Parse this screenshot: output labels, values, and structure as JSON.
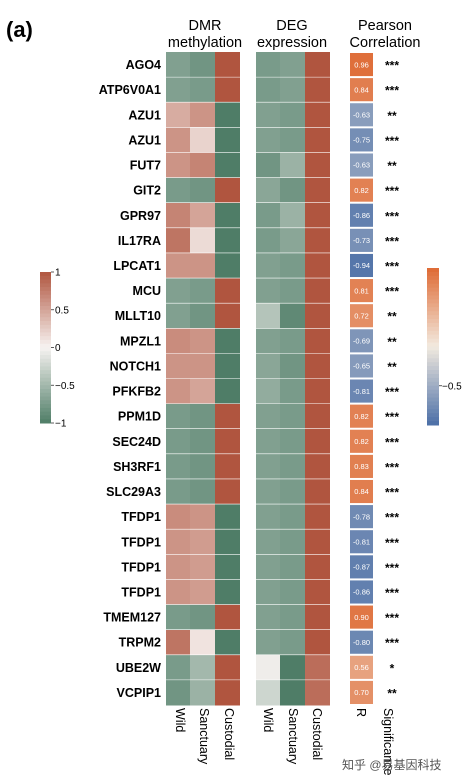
{
  "panel_label": "(a)",
  "headers": {
    "dmr": [
      "DMR",
      "methylation"
    ],
    "deg": [
      "DEG",
      "expression"
    ],
    "pearson": [
      "Pearson",
      "Correlation"
    ]
  },
  "x_labels": {
    "dmr": [
      "Wild",
      "Sanctuary",
      "Custodial"
    ],
    "deg": [
      "Wild",
      "Sanctuary",
      "Custodial"
    ],
    "r": "R",
    "sig": "Significance"
  },
  "colors": {
    "brown": "#b0553f",
    "white": "#f7f3f1",
    "green": "#4f7d67",
    "r_neg": "#4b6fa7",
    "r_mid": "#f2eadf",
    "r_pos": "#de6a34"
  },
  "chart_data": {
    "type": "heatmap",
    "genes": [
      "AGO4",
      "ATP6V0A1",
      "AZU1",
      "AZU1",
      "FUT7",
      "GIT2",
      "GPR97",
      "IL17RA",
      "LPCAT1",
      "MCU",
      "MLLT10",
      "MPZL1",
      "NOTCH1",
      "PFKFB2",
      "PPM1D",
      "SEC24D",
      "SH3RF1",
      "SLC29A3",
      "TFDP1",
      "TFDP1",
      "TFDP1",
      "TFDP1",
      "TMEM127",
      "TRPM2",
      "UBE2W",
      "VCPIP1"
    ],
    "columns": [
      "Wild",
      "Sanctuary",
      "Custodial"
    ],
    "dmr_methylation": [
      [
        -0.7,
        -0.8,
        1.0
      ],
      [
        -0.7,
        -0.75,
        1.0
      ],
      [
        0.45,
        0.6,
        -1.0
      ],
      [
        0.6,
        0.2,
        -1.0
      ],
      [
        0.6,
        0.7,
        -1.0
      ],
      [
        -0.75,
        -0.8,
        1.0
      ],
      [
        0.7,
        0.5,
        -1.0
      ],
      [
        0.8,
        0.15,
        -1.0
      ],
      [
        0.6,
        0.6,
        -1.0
      ],
      [
        -0.7,
        -0.75,
        1.0
      ],
      [
        -0.7,
        -0.8,
        1.0
      ],
      [
        0.65,
        0.6,
        -1.0
      ],
      [
        0.6,
        0.6,
        -1.0
      ],
      [
        0.6,
        0.5,
        -1.0
      ],
      [
        -0.75,
        -0.8,
        1.0
      ],
      [
        -0.75,
        -0.8,
        1.0
      ],
      [
        -0.75,
        -0.8,
        1.0
      ],
      [
        -0.75,
        -0.8,
        1.0
      ],
      [
        0.65,
        0.6,
        -1.0
      ],
      [
        0.6,
        0.55,
        -1.0
      ],
      [
        0.6,
        0.55,
        -1.0
      ],
      [
        0.6,
        0.55,
        -1.0
      ],
      [
        -0.75,
        -0.8,
        1.0
      ],
      [
        0.8,
        0.1,
        -1.0
      ],
      [
        -0.75,
        -0.5,
        1.0
      ],
      [
        -0.8,
        -0.55,
        1.0
      ]
    ],
    "deg_expression": [
      [
        -0.75,
        -0.7,
        1.0
      ],
      [
        -0.75,
        -0.7,
        1.0
      ],
      [
        -0.7,
        -0.75,
        1.0
      ],
      [
        -0.7,
        -0.75,
        1.0
      ],
      [
        -0.8,
        -0.55,
        1.0
      ],
      [
        -0.65,
        -0.8,
        1.0
      ],
      [
        -0.75,
        -0.55,
        1.0
      ],
      [
        -0.75,
        -0.65,
        1.0
      ],
      [
        -0.7,
        -0.75,
        1.0
      ],
      [
        -0.7,
        -0.75,
        1.0
      ],
      [
        -0.4,
        -0.9,
        1.0
      ],
      [
        -0.7,
        -0.75,
        1.0
      ],
      [
        -0.65,
        -0.8,
        1.0
      ],
      [
        -0.6,
        -0.75,
        1.0
      ],
      [
        -0.7,
        -0.75,
        1.0
      ],
      [
        -0.7,
        -0.75,
        1.0
      ],
      [
        -0.7,
        -0.75,
        1.0
      ],
      [
        -0.7,
        -0.75,
        1.0
      ],
      [
        -0.7,
        -0.75,
        1.0
      ],
      [
        -0.7,
        -0.75,
        1.0
      ],
      [
        -0.7,
        -0.75,
        1.0
      ],
      [
        -0.7,
        -0.75,
        1.0
      ],
      [
        -0.7,
        -0.75,
        1.0
      ],
      [
        -0.7,
        -0.75,
        1.0
      ],
      [
        -0.05,
        -1.0,
        0.85
      ],
      [
        -0.25,
        -1.0,
        0.85
      ]
    ],
    "pearson_r": [
      0.96,
      0.84,
      -0.63,
      -0.75,
      -0.63,
      0.82,
      -0.86,
      -0.73,
      -0.94,
      0.81,
      0.72,
      -0.69,
      -0.65,
      -0.81,
      0.82,
      0.82,
      0.83,
      0.84,
      -0.78,
      -0.81,
      -0.87,
      -0.86,
      0.9,
      -0.8,
      0.56,
      0.7
    ],
    "pearson_labels": [
      "0.96",
      "0.84",
      "-0.63",
      "-0.75",
      "-0.63",
      "0.82",
      "-0.86",
      "-0.73",
      "-0.94",
      "0.81",
      "0.72",
      "-0.69",
      "-0.65",
      "-0.81",
      "0.82",
      "0.82",
      "0.83",
      "0.84",
      "-0.78",
      "-0.81",
      "-0.87",
      "-0.86",
      "0.90",
      "-0.80",
      "0.56",
      "0.70"
    ],
    "significance": [
      "***",
      "***",
      "**",
      "***",
      "**",
      "***",
      "***",
      "***",
      "***",
      "***",
      "**",
      "**",
      "**",
      "***",
      "***",
      "***",
      "***",
      "***",
      "***",
      "***",
      "***",
      "***",
      "***",
      "***",
      "*",
      "**"
    ],
    "left_legend": {
      "range": [
        -1,
        1
      ],
      "ticks": [
        "1",
        "0.5",
        "0",
        "−0.5",
        "−1"
      ],
      "tick_values": [
        1,
        0.5,
        0,
        -0.5,
        -1
      ]
    },
    "right_legend": {
      "range": [
        -1,
        1
      ],
      "visible_ticks": [
        "−0.5"
      ],
      "tick_values": [
        -0.5
      ]
    }
  },
  "watermark": "知乎 @易基因科技"
}
